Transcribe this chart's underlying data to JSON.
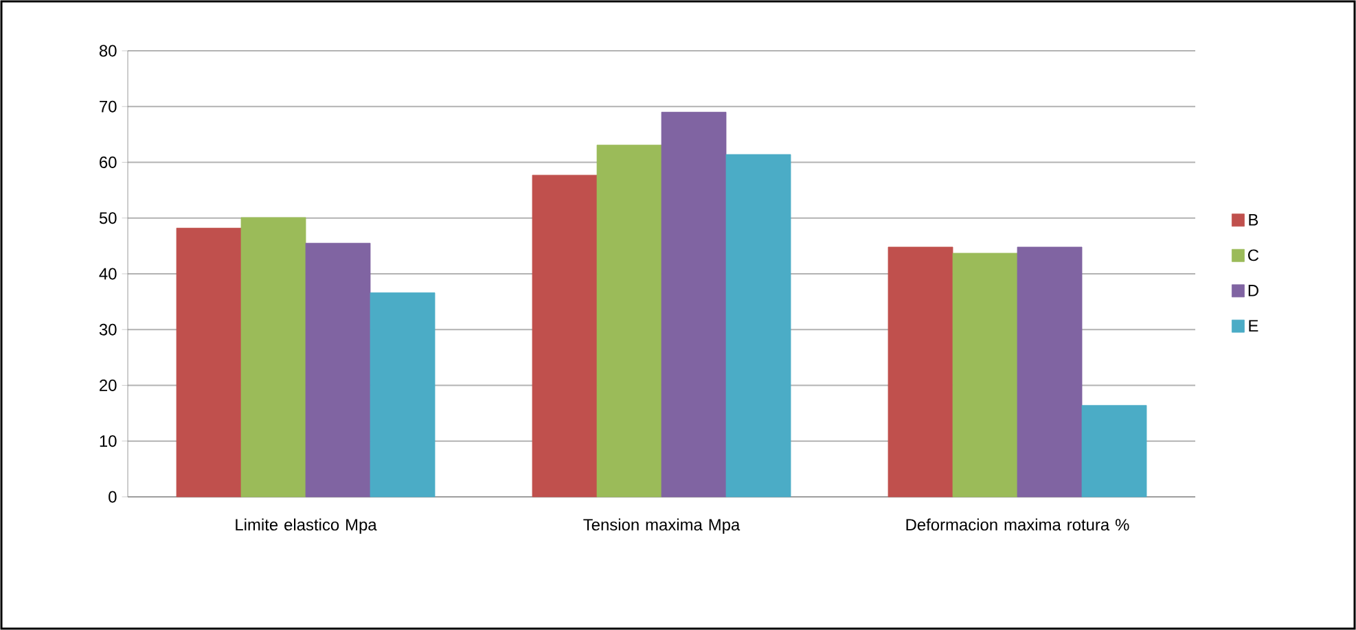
{
  "chart_data": {
    "type": "bar",
    "categories": [
      "Limite elastico Mpa",
      "Tension maxima Mpa",
      "Deformacion maxima rotura %"
    ],
    "series": [
      {
        "name": "B",
        "color": "#c0504d",
        "values": [
          48.2,
          57.7,
          44.8
        ]
      },
      {
        "name": "C",
        "color": "#9bbb59",
        "values": [
          50.1,
          63.1,
          43.7
        ]
      },
      {
        "name": "D",
        "color": "#8064a2",
        "values": [
          45.5,
          69.0,
          44.8
        ]
      },
      {
        "name": "E",
        "color": "#4bacc6",
        "values": [
          36.6,
          61.4,
          16.4
        ]
      }
    ],
    "ylim": [
      0,
      80
    ],
    "yticks": [
      0,
      10,
      20,
      30,
      40,
      50,
      60,
      70,
      80
    ],
    "grid": "y",
    "legend": "right"
  }
}
